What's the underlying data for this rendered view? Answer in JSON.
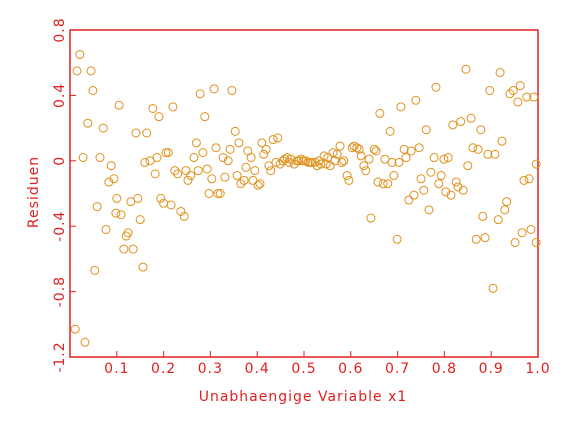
{
  "chart_data": {
    "type": "scatter",
    "xlabel": "Unabhaengige Variable x1",
    "ylabel": "Residuen",
    "color": "#e0901a",
    "axis_color": "#e02020",
    "xlim": [
      0,
      1
    ],
    "ylim": [
      -1.2,
      0.8
    ],
    "xticks": [
      0.1,
      0.2,
      0.3,
      0.4,
      0.5,
      0.6,
      0.7,
      0.8,
      0.9,
      {
        "value": 1,
        "label": "1.0"
      }
    ],
    "yticks": [
      -1.2,
      -0.8,
      -0.4,
      0,
      0.4,
      0.8
    ],
    "x": [
      0.011,
      0.021,
      0.015,
      0.032,
      0.028,
      0.045,
      0.038,
      0.049,
      0.053,
      0.058,
      0.064,
      0.071,
      0.077,
      0.083,
      0.088,
      0.094,
      0.1,
      0.098,
      0.105,
      0.109,
      0.115,
      0.124,
      0.12,
      0.13,
      0.135,
      0.141,
      0.145,
      0.15,
      0.156,
      0.16,
      0.164,
      0.171,
      0.177,
      0.182,
      0.186,
      0.19,
      0.194,
      0.2,
      0.205,
      0.21,
      0.216,
      0.22,
      0.224,
      0.23,
      0.237,
      0.244,
      0.248,
      0.252,
      0.258,
      0.265,
      0.27,
      0.274,
      0.278,
      0.284,
      0.288,
      0.293,
      0.297,
      0.303,
      0.308,
      0.312,
      0.316,
      0.321,
      0.327,
      0.331,
      0.338,
      0.342,
      0.346,
      0.353,
      0.357,
      0.361,
      0.365,
      0.372,
      0.376,
      0.38,
      0.387,
      0.391,
      0.395,
      0.402,
      0.406,
      0.41,
      0.414,
      0.419,
      0.425,
      0.429,
      0.434,
      0.44,
      0.444,
      0.449,
      0.455,
      0.459,
      0.464,
      0.468,
      0.472,
      0.479,
      0.485,
      0.489,
      0.494,
      0.498,
      0.504,
      0.509,
      0.513,
      0.517,
      0.524,
      0.528,
      0.532,
      0.536,
      0.543,
      0.547,
      0.551,
      0.556,
      0.562,
      0.566,
      0.571,
      0.577,
      0.581,
      0.585,
      0.592,
      0.596,
      0.603,
      0.607,
      0.613,
      0.618,
      0.622,
      0.628,
      0.632,
      0.639,
      0.643,
      0.65,
      0.654,
      0.658,
      0.662,
      0.669,
      0.673,
      0.679,
      0.684,
      0.688,
      0.692,
      0.699,
      0.703,
      0.707,
      0.714,
      0.718,
      0.724,
      0.729,
      0.735,
      0.739,
      0.746,
      0.75,
      0.756,
      0.761,
      0.767,
      0.771,
      0.778,
      0.782,
      0.788,
      0.793,
      0.799,
      0.803,
      0.808,
      0.814,
      0.818,
      0.825,
      0.829,
      0.835,
      0.84,
      0.846,
      0.85,
      0.857,
      0.861,
      0.868,
      0.872,
      0.878,
      0.882,
      0.887,
      0.893,
      0.897,
      0.904,
      0.908,
      0.915,
      0.919,
      0.923,
      0.929,
      0.933,
      0.94,
      0.947,
      0.951,
      0.957,
      0.962,
      0.966,
      0.97,
      0.976,
      0.981,
      0.985,
      0.991,
      0.996,
      0.996
    ],
    "y": [
      -1.03,
      0.65,
      0.55,
      -1.11,
      0.02,
      0.55,
      0.23,
      0.43,
      -0.67,
      -0.28,
      0.02,
      0.2,
      -0.42,
      -0.13,
      -0.03,
      -0.11,
      -0.23,
      -0.32,
      0.34,
      -0.33,
      -0.54,
      -0.44,
      -0.46,
      -0.25,
      -0.54,
      0.17,
      -0.23,
      -0.36,
      -0.65,
      -0.01,
      0.17,
      0.0,
      0.32,
      -0.08,
      0.02,
      0.27,
      -0.23,
      -0.26,
      0.05,
      0.05,
      -0.27,
      0.33,
      -0.06,
      -0.08,
      -0.31,
      -0.34,
      -0.06,
      -0.12,
      -0.09,
      0.02,
      0.11,
      -0.06,
      0.41,
      0.05,
      0.27,
      -0.05,
      -0.2,
      -0.11,
      0.44,
      0.08,
      -0.2,
      -0.2,
      0.02,
      -0.1,
      0.0,
      0.07,
      0.43,
      0.18,
      -0.09,
      0.11,
      -0.14,
      -0.12,
      -0.04,
      0.06,
      0.02,
      -0.12,
      -0.06,
      -0.15,
      -0.14,
      0.11,
      0.04,
      0.07,
      -0.03,
      -0.06,
      0.13,
      -0.01,
      0.14,
      -0.02,
      0.0,
      0.01,
      0.02,
      -0.01,
      0.01,
      -0.02,
      0.0,
      0.0,
      0.01,
      0.0,
      0.0,
      -0.01,
      -0.01,
      -0.01,
      -0.01,
      -0.03,
      0.0,
      -0.02,
      0.03,
      -0.02,
      0.02,
      -0.03,
      0.05,
      0.0,
      0.04,
      0.09,
      -0.01,
      0.0,
      -0.09,
      -0.12,
      0.08,
      0.09,
      0.08,
      0.07,
      0.03,
      -0.03,
      -0.06,
      0.01,
      -0.35,
      0.07,
      0.06,
      -0.13,
      0.29,
      -0.14,
      0.01,
      -0.14,
      0.18,
      -0.01,
      -0.09,
      -0.48,
      -0.01,
      0.33,
      0.07,
      0.02,
      -0.24,
      0.06,
      -0.21,
      0.37,
      0.08,
      -0.11,
      -0.18,
      0.19,
      -0.3,
      -0.07,
      0.02,
      0.45,
      -0.14,
      -0.09,
      0.01,
      -0.19,
      0.02,
      -0.21,
      0.22,
      -0.13,
      -0.16,
      0.24,
      -0.18,
      0.56,
      -0.03,
      0.26,
      0.08,
      -0.48,
      0.07,
      0.19,
      -0.34,
      -0.47,
      0.04,
      0.43,
      -0.78,
      0.04,
      -0.36,
      0.54,
      0.12,
      -0.3,
      -0.25,
      0.41,
      0.43,
      -0.5,
      0.36,
      0.46,
      -0.44,
      -0.12,
      0.39,
      -0.11,
      -0.42,
      0.39,
      -0.5,
      -0.02
    ]
  }
}
